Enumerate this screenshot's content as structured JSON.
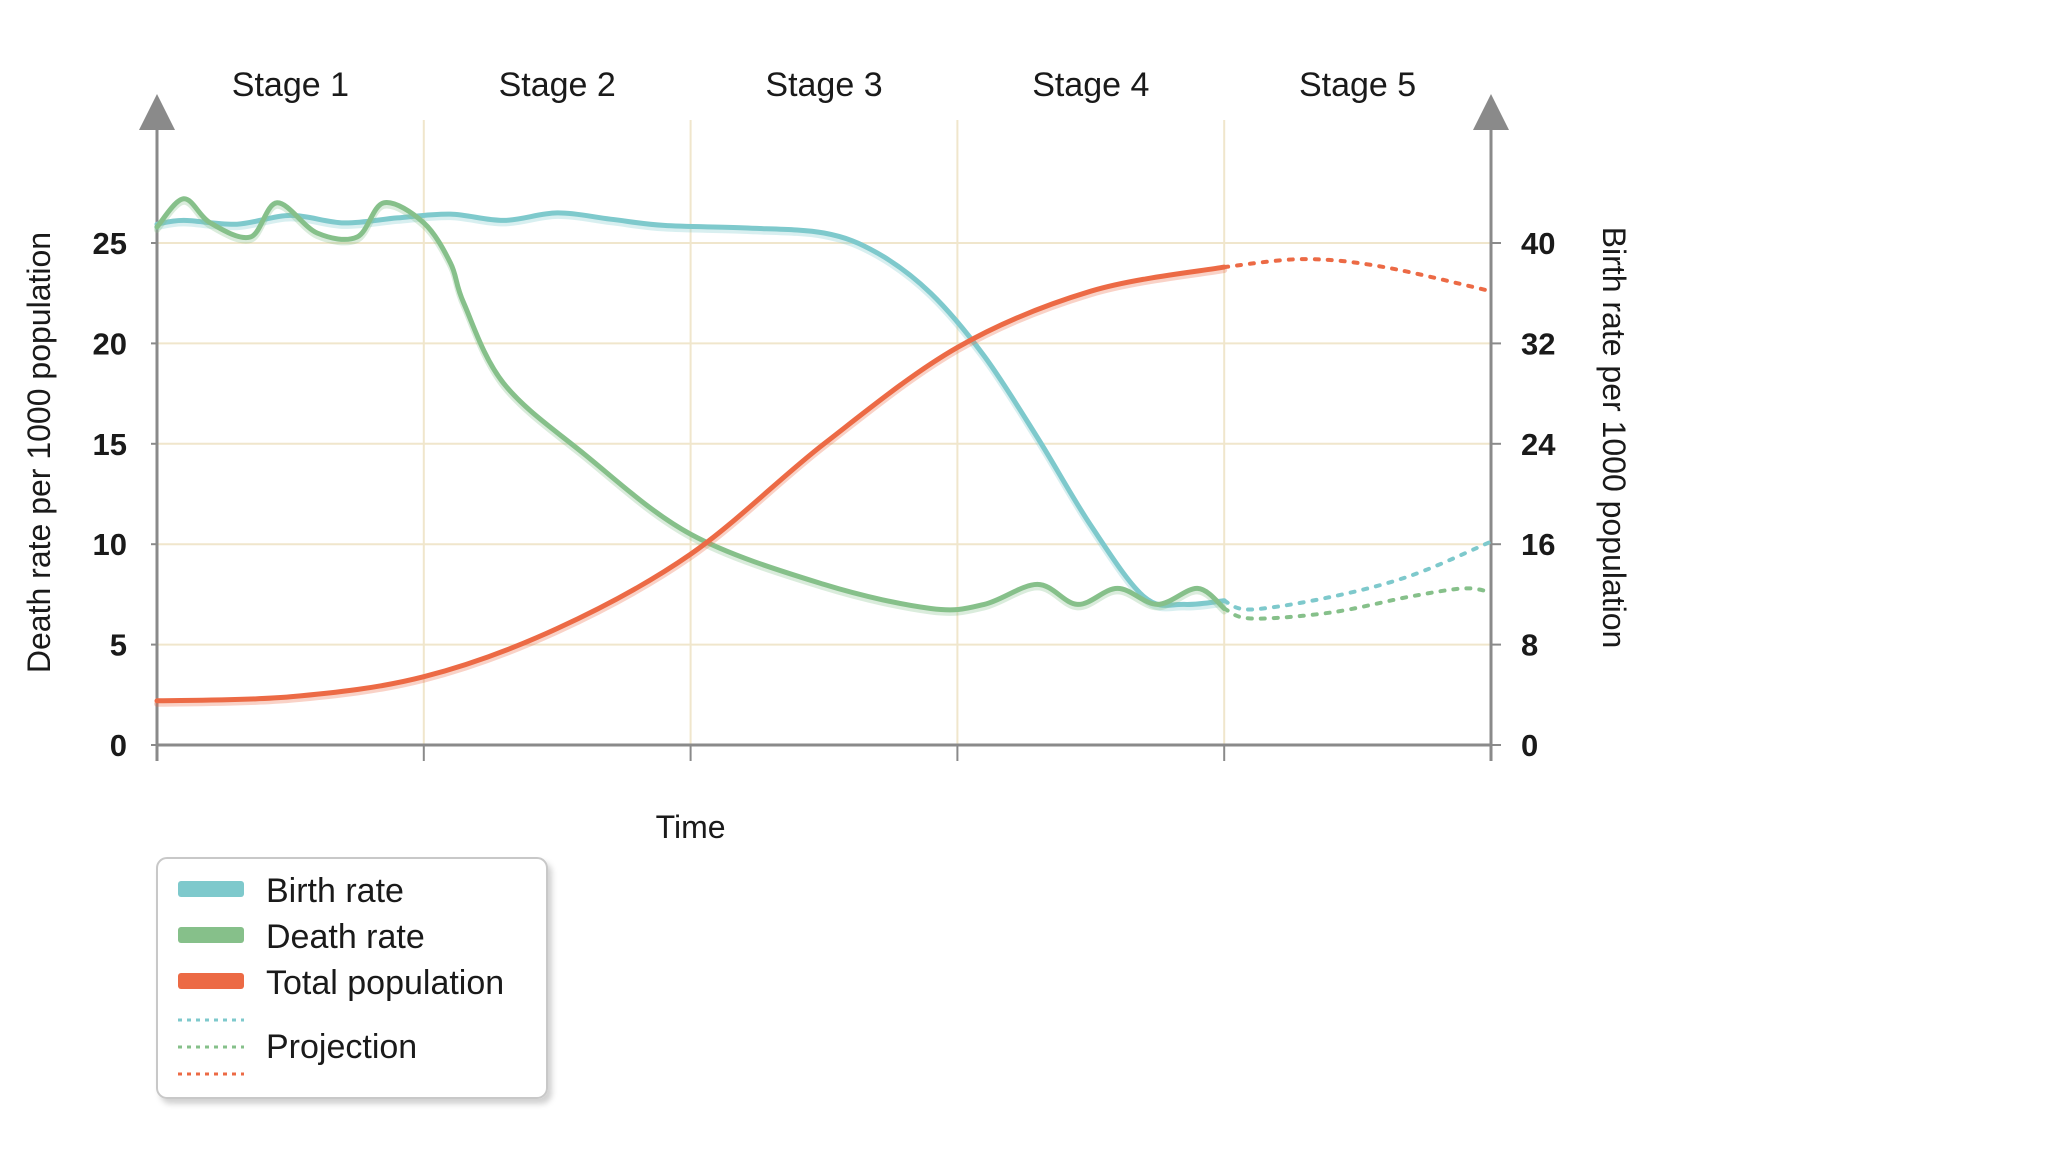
{
  "chart_data": {
    "type": "line",
    "stages": [
      "Stage 1",
      "Stage 2",
      "Stage 3",
      "Stage 4",
      "Stage 5"
    ],
    "xlabel": "Time",
    "ylabel_left": "Death rate per 1000 population",
    "ylabel_right": "Birth rate per 1000 population",
    "ylim_left": [
      0,
      25
    ],
    "ylim_right": [
      0,
      40
    ],
    "yticks_left": [
      "0",
      "5",
      "10",
      "15",
      "20",
      "25"
    ],
    "yticks_right": [
      "0",
      "8",
      "16",
      "24",
      "32",
      "40"
    ],
    "x_range": [
      0,
      5
    ],
    "grid": true,
    "legend_position": "bottom-left",
    "colors": {
      "birth": "#7ec9cc",
      "death": "#86c08a",
      "population": "#ec6a45",
      "grid": "#f0e6cc",
      "axis": "#8a8a8a"
    },
    "series": [
      {
        "name": "Birth rate",
        "axis": "right",
        "values": [
          [
            0,
            41.5
          ],
          [
            0.1,
            41.8
          ],
          [
            0.3,
            41.5
          ],
          [
            0.5,
            42.2
          ],
          [
            0.7,
            41.6
          ],
          [
            0.9,
            42.0
          ],
          [
            1.1,
            42.3
          ],
          [
            1.3,
            41.8
          ],
          [
            1.5,
            42.4
          ],
          [
            1.7,
            41.9
          ],
          [
            1.9,
            41.4
          ],
          [
            2.2,
            41.2
          ],
          [
            2.5,
            40.8
          ],
          [
            2.7,
            39.2
          ],
          [
            2.9,
            36.0
          ],
          [
            3.1,
            31.0
          ],
          [
            3.3,
            24.5
          ],
          [
            3.5,
            17.5
          ],
          [
            3.7,
            11.8
          ],
          [
            3.85,
            11.2
          ],
          [
            4.0,
            11.5
          ]
        ]
      },
      {
        "name": "Death rate",
        "axis": "left",
        "values": [
          [
            0,
            25.8
          ],
          [
            0.1,
            27.2
          ],
          [
            0.2,
            26.0
          ],
          [
            0.35,
            25.3
          ],
          [
            0.45,
            27.0
          ],
          [
            0.6,
            25.5
          ],
          [
            0.75,
            25.3
          ],
          [
            0.85,
            27.0
          ],
          [
            1.0,
            26.0
          ],
          [
            1.1,
            24.0
          ],
          [
            1.15,
            22.0
          ],
          [
            1.3,
            18.0
          ],
          [
            1.6,
            14.5
          ],
          [
            2.0,
            10.5
          ],
          [
            2.5,
            8.0
          ],
          [
            2.9,
            6.8
          ],
          [
            3.1,
            7.0
          ],
          [
            3.3,
            8.0
          ],
          [
            3.45,
            7.0
          ],
          [
            3.6,
            7.8
          ],
          [
            3.75,
            7.0
          ],
          [
            3.9,
            7.8
          ],
          [
            4.0,
            6.8
          ]
        ]
      },
      {
        "name": "Total population",
        "axis": "left",
        "values": [
          [
            0,
            2.2
          ],
          [
            0.5,
            2.4
          ],
          [
            1.0,
            3.4
          ],
          [
            1.5,
            5.8
          ],
          [
            2.0,
            9.5
          ],
          [
            2.5,
            15.0
          ],
          [
            3.0,
            19.8
          ],
          [
            3.5,
            22.6
          ],
          [
            4.0,
            23.8
          ]
        ]
      },
      {
        "name": "Projection",
        "lines": [
          {
            "of": "Birth rate",
            "axis": "right",
            "values": [
              [
                4.0,
                11.5
              ],
              [
                4.1,
                10.8
              ],
              [
                4.4,
                11.8
              ],
              [
                4.7,
                13.5
              ],
              [
                5.0,
                16.2
              ]
            ]
          },
          {
            "of": "Death rate",
            "axis": "left",
            "values": [
              [
                4.0,
                6.8
              ],
              [
                4.1,
                6.3
              ],
              [
                4.4,
                6.6
              ],
              [
                4.7,
                7.4
              ],
              [
                4.9,
                7.8
              ],
              [
                5.0,
                7.6
              ]
            ]
          },
          {
            "of": "Total population",
            "axis": "left",
            "values": [
              [
                4.0,
                23.8
              ],
              [
                4.3,
                24.2
              ],
              [
                4.6,
                23.8
              ],
              [
                5.0,
                22.6
              ]
            ]
          }
        ]
      }
    ]
  },
  "legend": {
    "items": [
      "Birth rate",
      "Death rate",
      "Total population",
      "Projection"
    ]
  }
}
